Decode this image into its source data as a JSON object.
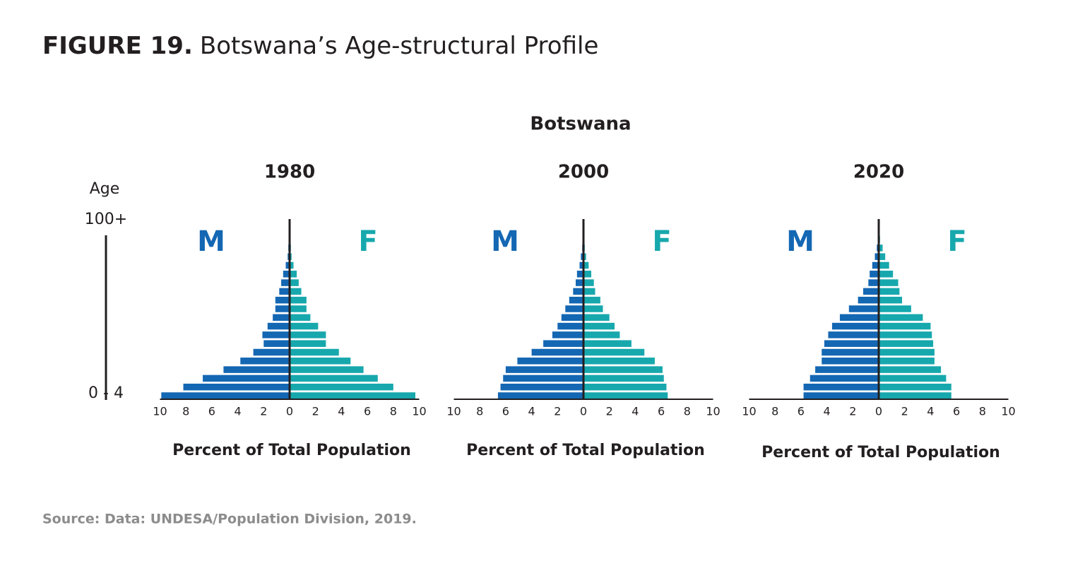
{
  "header": {
    "figure": "FIGURE 19.",
    "title": "Botswana’s Age-structural Profile"
  },
  "suptitle": "Botswana",
  "chart_data": [
    {
      "type": "pyramid",
      "title": "1980",
      "ylabel": "Age",
      "categories": [
        "0 - 4",
        null,
        null,
        null,
        null,
        null,
        null,
        null,
        null,
        null,
        null,
        null,
        null,
        null,
        null,
        null,
        null,
        null,
        null,
        null,
        "100+"
      ],
      "series": [
        {
          "name": "M",
          "color": "#1467b3",
          "values": [
            -9.9,
            -8.2,
            -6.7,
            -5.1,
            -3.8,
            -2.8,
            -2.0,
            -2.1,
            -1.7,
            -1.3,
            -1.1,
            -1.1,
            -0.8,
            -0.65,
            -0.5,
            -0.3,
            -0.15,
            -0.1,
            -0.05,
            0,
            0
          ]
        },
        {
          "name": "F",
          "color": "#17a8ad",
          "values": [
            9.7,
            8.0,
            6.8,
            5.7,
            4.7,
            3.8,
            2.8,
            2.8,
            2.2,
            1.6,
            1.3,
            1.3,
            0.9,
            0.7,
            0.55,
            0.3,
            0.15,
            0.1,
            0.05,
            0,
            0
          ]
        }
      ],
      "xlim": [
        -10,
        10
      ],
      "xticks": [
        {
          "value": -10,
          "label": "10"
        },
        {
          "value": -8,
          "label": "8"
        },
        {
          "value": -6,
          "label": "6"
        },
        {
          "value": -4,
          "label": "4"
        },
        {
          "value": -2,
          "label": "2"
        },
        0,
        2,
        4,
        6,
        8,
        10
      ],
      "xlabel": "Percent of Total Population"
    },
    {
      "type": "pyramid",
      "title": "2000",
      "series": [
        {
          "name": "M",
          "color": "#1467b3",
          "values": [
            -6.6,
            -6.4,
            -6.2,
            -6.0,
            -5.1,
            -4.0,
            -3.1,
            -2.4,
            -2.0,
            -1.7,
            -1.4,
            -1.1,
            -0.8,
            -0.6,
            -0.5,
            -0.3,
            -0.2,
            -0.1,
            -0.05,
            0,
            0
          ]
        },
        {
          "name": "F",
          "color": "#17a8ad",
          "values": [
            6.5,
            6.4,
            6.2,
            6.1,
            5.5,
            4.7,
            3.7,
            2.8,
            2.4,
            2.0,
            1.5,
            1.3,
            0.9,
            0.8,
            0.6,
            0.4,
            0.2,
            0.1,
            0.05,
            0,
            0
          ]
        }
      ],
      "xlim": [
        -10,
        10
      ],
      "xticks": [
        {
          "value": -10,
          "label": "10"
        },
        {
          "value": -8,
          "label": "8"
        },
        {
          "value": -6,
          "label": "6"
        },
        {
          "value": -4,
          "label": "4"
        },
        {
          "value": -2,
          "label": "2"
        },
        0,
        2,
        4,
        6,
        8,
        10
      ],
      "xlabel": "Percent of Total Population"
    },
    {
      "type": "pyramid",
      "title": "2020",
      "series": [
        {
          "name": "M",
          "color": "#1467b3",
          "values": [
            -5.8,
            -5.8,
            -5.3,
            -4.9,
            -4.4,
            -4.4,
            -4.2,
            -3.9,
            -3.6,
            -3.0,
            -2.3,
            -1.6,
            -1.2,
            -0.8,
            -0.7,
            -0.5,
            -0.3,
            -0.15,
            -0.05,
            0,
            0
          ]
        },
        {
          "name": "F",
          "color": "#17a8ad",
          "values": [
            5.6,
            5.6,
            5.2,
            4.8,
            4.3,
            4.3,
            4.2,
            4.1,
            4.0,
            3.4,
            2.5,
            1.8,
            1.6,
            1.5,
            1.1,
            0.8,
            0.5,
            0.3,
            0.1,
            0.05,
            0
          ]
        }
      ],
      "xlim": [
        -10,
        10
      ],
      "xticks": [
        {
          "value": -10,
          "label": "10"
        },
        {
          "value": -8,
          "label": "8"
        },
        {
          "value": -6,
          "label": "6"
        },
        {
          "value": -4,
          "label": "4"
        },
        {
          "value": -2,
          "label": "2"
        },
        0,
        2,
        4,
        6,
        8,
        10
      ],
      "xlabel": "Percent of Total Population"
    }
  ],
  "source": "Source: Data: UNDESA/Population Division, 2019."
}
